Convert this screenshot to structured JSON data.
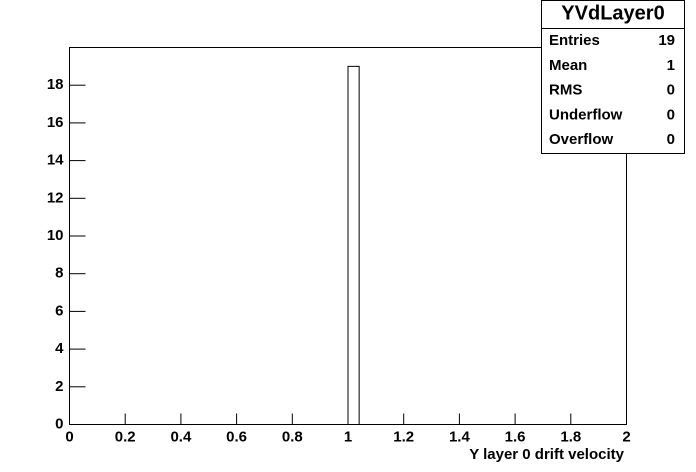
{
  "chart_data": {
    "type": "histogram",
    "title": "YVdLayer0",
    "x_label": "Y layer 0 drift velocity",
    "bins": [
      1,
      1.04
    ],
    "values": [
      19
    ],
    "color": "#ffffff",
    "xlim": [
      0,
      2
    ],
    "xticks": [
      0,
      0.2,
      0.4,
      0.6,
      0.8,
      1,
      1.2,
      1.4,
      1.6,
      1.8,
      2
    ],
    "ylim": [
      0,
      20
    ],
    "yticks": [
      0,
      2,
      4,
      6,
      8,
      10,
      12,
      14,
      16,
      18
    ],
    "stats": [
      {
        "label": "Entries",
        "value": 19
      },
      {
        "label": "Mean",
        "value": 1
      },
      {
        "label": "RMS",
        "value": 0
      },
      {
        "label": "Underflow",
        "value": 0
      },
      {
        "label": "Overflow",
        "value": 0
      }
    ]
  }
}
